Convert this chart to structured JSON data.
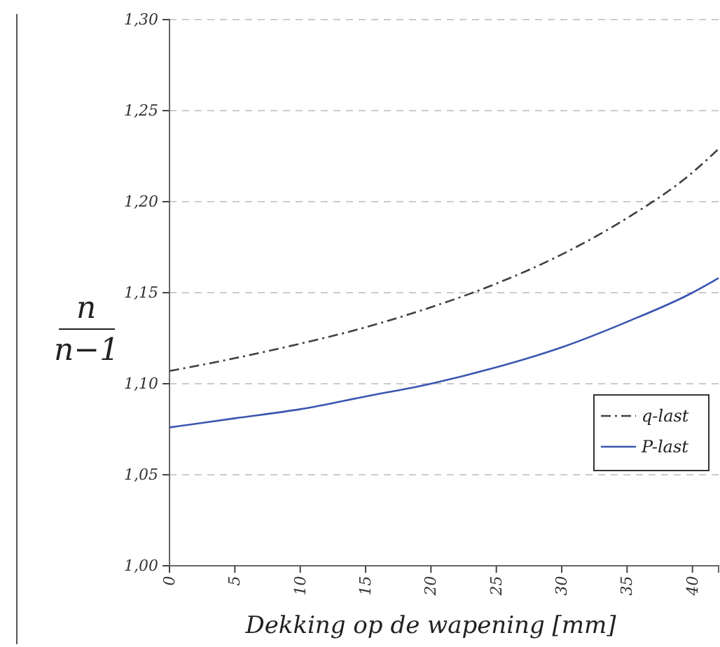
{
  "chart_data": {
    "type": "line",
    "xlabel": "Dekking op de wapening [mm]",
    "ylabel": "n/(n−1)",
    "xlim": [
      0,
      42
    ],
    "ylim": [
      1.0,
      1.3
    ],
    "xticks": [
      0,
      5,
      10,
      15,
      20,
      25,
      30,
      35,
      40
    ],
    "yticks": [
      {
        "value": 1.0,
        "label": "1,00"
      },
      {
        "value": 1.05,
        "label": "1,05"
      },
      {
        "value": 1.1,
        "label": "1,10"
      },
      {
        "value": 1.15,
        "label": "1,15"
      },
      {
        "value": 1.2,
        "label": "1,20"
      },
      {
        "value": 1.25,
        "label": "1,25"
      },
      {
        "value": 1.3,
        "label": "1,30"
      }
    ],
    "grid": "y",
    "legend": "right",
    "x": [
      0,
      5,
      10,
      15,
      20,
      25,
      30,
      35,
      40,
      42
    ],
    "series": [
      {
        "name": "q-last",
        "color": "#404040",
        "line_style": "dashed",
        "values": [
          1.107,
          1.114,
          1.122,
          1.131,
          1.142,
          1.155,
          1.171,
          1.191,
          1.216,
          1.229
        ]
      },
      {
        "name": "P-last",
        "color": "#3a56b0",
        "line_style": "solid",
        "values": [
          1.076,
          1.081,
          1.086,
          1.093,
          1.1,
          1.109,
          1.12,
          1.134,
          1.15,
          1.158
        ]
      }
    ]
  }
}
